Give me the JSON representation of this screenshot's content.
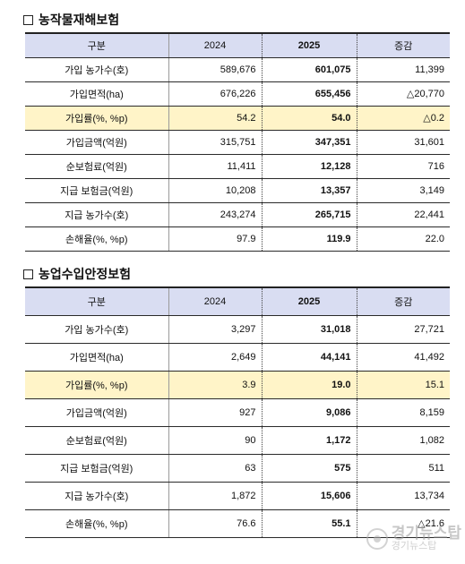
{
  "section1": {
    "title": "농작물재해보험",
    "headers": [
      "구분",
      "2024",
      "2025",
      "증감"
    ],
    "rows": [
      {
        "label": "가입 농가수(호)",
        "y2024": "589,676",
        "y2025": "601,075",
        "change": "11,399"
      },
      {
        "label": "가입면적(ha)",
        "y2024": "676,226",
        "y2025": "655,456",
        "change": "△20,770"
      },
      {
        "label": "가입률(%, %p)",
        "y2024": "54.2",
        "y2025": "54.0",
        "change": "△0.2"
      },
      {
        "label": "가입금액(억원)",
        "y2024": "315,751",
        "y2025": "347,351",
        "change": "31,601"
      },
      {
        "label": "순보험료(억원)",
        "y2024": "11,411",
        "y2025": "12,128",
        "change": "716"
      },
      {
        "label": "지급 보험금(억원)",
        "y2024": "10,208",
        "y2025": "13,357",
        "change": "3,149"
      },
      {
        "label": "지급 농가수(호)",
        "y2024": "243,274",
        "y2025": "265,715",
        "change": "22,441"
      },
      {
        "label": "손해율(%, %p)",
        "y2024": "97.9",
        "y2025": "119.9",
        "change": "22.0"
      }
    ]
  },
  "section2": {
    "title": "농업수입안정보험",
    "headers": [
      "구분",
      "2024",
      "2025",
      "증감"
    ],
    "rows": [
      {
        "label": "가입 농가수(호)",
        "y2024": "3,297",
        "y2025": "31,018",
        "change": "27,721"
      },
      {
        "label": "가입면적(ha)",
        "y2024": "2,649",
        "y2025": "44,141",
        "change": "41,492"
      },
      {
        "label": "가입률(%, %p)",
        "y2024": "3.9",
        "y2025": "19.0",
        "change": "15.1"
      },
      {
        "label": "가입금액(억원)",
        "y2024": "927",
        "y2025": "9,086",
        "change": "8,159"
      },
      {
        "label": "순보험료(억원)",
        "y2024": "90",
        "y2025": "1,172",
        "change": "1,082"
      },
      {
        "label": "지급 보험금(억원)",
        "y2024": "63",
        "y2025": "575",
        "change": "511"
      },
      {
        "label": "지급 농가수(호)",
        "y2024": "1,872",
        "y2025": "15,606",
        "change": "13,734"
      },
      {
        "label": "손해율(%, %p)",
        "y2024": "76.6",
        "y2025": "55.1",
        "change": "△21.6"
      }
    ]
  },
  "watermark": {
    "main": "경기뉴스탑",
    "sub": "경기뉴스탑"
  },
  "colors": {
    "header_bg": "#d9ddf2",
    "highlight_bg": "#fff4c8"
  }
}
